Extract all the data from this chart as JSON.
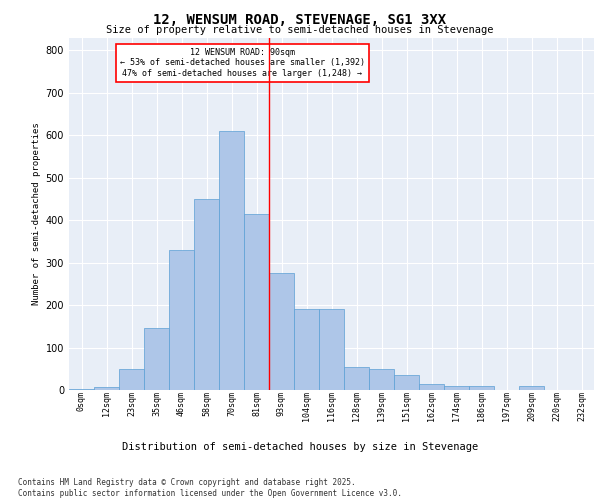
{
  "title1": "12, WENSUM ROAD, STEVENAGE, SG1 3XX",
  "title2": "Size of property relative to semi-detached houses in Stevenage",
  "xlabel": "Distribution of semi-detached houses by size in Stevenage",
  "ylabel": "Number of semi-detached properties",
  "categories": [
    "0sqm",
    "12sqm",
    "23sqm",
    "35sqm",
    "46sqm",
    "58sqm",
    "70sqm",
    "81sqm",
    "93sqm",
    "104sqm",
    "116sqm",
    "128sqm",
    "139sqm",
    "151sqm",
    "162sqm",
    "174sqm",
    "186sqm",
    "197sqm",
    "209sqm",
    "220sqm",
    "232sqm"
  ],
  "values": [
    2,
    8,
    50,
    145,
    330,
    450,
    610,
    415,
    275,
    190,
    190,
    55,
    50,
    35,
    15,
    10,
    10,
    0,
    10,
    0,
    0
  ],
  "bar_color": "#aec6e8",
  "bar_edge_color": "#5a9fd4",
  "annotation_text_line1": "12 WENSUM ROAD: 90sqm",
  "annotation_text_line2": "← 53% of semi-detached houses are smaller (1,392)",
  "annotation_text_line3": "47% of semi-detached houses are larger (1,248) →",
  "background_color": "#e8eef7",
  "grid_color": "#ffffff",
  "footer1": "Contains HM Land Registry data © Crown copyright and database right 2025.",
  "footer2": "Contains public sector information licensed under the Open Government Licence v3.0.",
  "ylim": [
    0,
    830
  ],
  "red_line_x": 8
}
